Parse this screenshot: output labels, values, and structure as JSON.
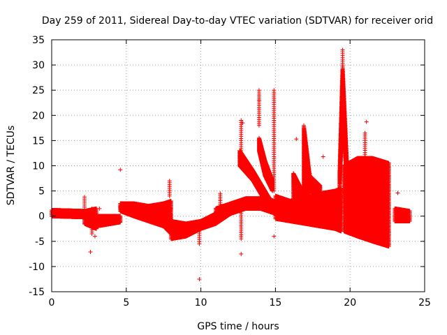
{
  "chart_data": {
    "type": "scatter",
    "title": "Day 259 of 2011, Sidereal Day-to-day VTEC variation (SDTVAR) for receiver orid",
    "xlabel": "GPS time / hours",
    "ylabel": "SDTVAR / TECUs",
    "xlim": [
      0,
      25
    ],
    "ylim": [
      -15,
      35
    ],
    "xticks": [
      0,
      5,
      10,
      15,
      20,
      25
    ],
    "yticks": [
      -15,
      -10,
      -5,
      0,
      5,
      10,
      15,
      20,
      25,
      30,
      35
    ],
    "grid": true,
    "marker": "+",
    "color": "#ff0000",
    "bands": [
      {
        "x": [
          0.0,
          2.2
        ],
        "lo": [
          0.0,
          -0.2
        ],
        "hi": [
          1.2,
          1.0
        ]
      },
      {
        "x": [
          2.2,
          3.0
        ],
        "lo": [
          -1.5,
          -2.5
        ],
        "hi": [
          1.0,
          1.5
        ]
      },
      {
        "x": [
          3.0,
          4.6
        ],
        "lo": [
          -2.0,
          -1.2
        ],
        "hi": [
          0.0,
          0.0
        ]
      },
      {
        "x": [
          4.6,
          5.5,
          6.5,
          7.5,
          8.0
        ],
        "lo": [
          1.0,
          0.0,
          -1.0,
          -2.0,
          -3.5
        ],
        "hi": [
          2.5,
          2.5,
          2.0,
          2.5,
          3.0
        ]
      },
      {
        "x": [
          8.0,
          9.0,
          10.0,
          11.0
        ],
        "lo": [
          -4.5,
          -4.0,
          -2.5,
          -1.5
        ],
        "hi": [
          -1.0,
          -1.5,
          -1.0,
          0.5
        ]
      },
      {
        "x": [
          11.0,
          12.0,
          13.0,
          14.0,
          15.0
        ],
        "lo": [
          -1.5,
          0.5,
          1.5,
          1.5,
          0.5
        ],
        "hi": [
          1.5,
          2.5,
          3.5,
          3.5,
          3.0
        ]
      },
      {
        "x": [
          12.6,
          13.5,
          14.5,
          15.0
        ],
        "lo": [
          10.0,
          7.0,
          2.0,
          1.0
        ],
        "hi": [
          13.0,
          9.0,
          4.0,
          2.0
        ]
      },
      {
        "x": [
          13.9,
          14.3,
          14.8
        ],
        "lo": [
          13.0,
          8.0,
          5.0
        ],
        "hi": [
          15.5,
          11.0,
          7.0
        ]
      },
      {
        "x": [
          15.0,
          16.0,
          17.0,
          18.0,
          19.0,
          19.4
        ],
        "lo": [
          -0.5,
          -1.0,
          -1.5,
          -2.0,
          -2.5,
          -3.0
        ],
        "hi": [
          4.0,
          3.0,
          3.5,
          4.5,
          5.0,
          5.5
        ]
      },
      {
        "x": [
          16.2,
          16.8
        ],
        "lo": [
          3.0,
          2.0
        ],
        "hi": [
          8.5,
          5.0
        ]
      },
      {
        "x": [
          16.9,
          17.3,
          18.0
        ],
        "lo": [
          3.0,
          5.0,
          4.0
        ],
        "hi": [
          18.0,
          8.0,
          6.0
        ]
      },
      {
        "x": [
          19.3,
          19.5,
          19.8
        ],
        "lo": [
          5.0,
          20.0,
          6.0
        ],
        "hi": [
          9.0,
          30.0,
          10.0
        ]
      },
      {
        "x": [
          19.6,
          20.5,
          21.5,
          22.6
        ],
        "lo": [
          -3.0,
          -4.0,
          -5.0,
          -6.0
        ],
        "hi": [
          10.0,
          11.5,
          11.5,
          10.5
        ]
      },
      {
        "x": [
          23.0,
          24.0
        ],
        "lo": [
          -1.0,
          -1.0
        ],
        "hi": [
          1.5,
          1.0
        ]
      }
    ],
    "spikes": [
      {
        "x": 2.2,
        "lo": 1.0,
        "hi": 3.8
      },
      {
        "x": 2.7,
        "lo": -3.5,
        "hi": 1.5
      },
      {
        "x": 7.9,
        "lo": 4.0,
        "hi": 7.0
      },
      {
        "x": 9.9,
        "lo": -5.5,
        "hi": -1.5
      },
      {
        "x": 11.3,
        "lo": 2.0,
        "hi": 4.5
      },
      {
        "x": 12.7,
        "lo": -4.5,
        "hi": 1.0
      },
      {
        "x": 12.7,
        "lo": 13.0,
        "hi": 19.0
      },
      {
        "x": 13.9,
        "lo": 18.0,
        "hi": 25.0
      },
      {
        "x": 14.9,
        "lo": 5.0,
        "hi": 25.0
      },
      {
        "x": 17.3,
        "lo": 4.0,
        "hi": 8.5
      },
      {
        "x": 19.5,
        "lo": 30.0,
        "hi": 33.0
      },
      {
        "x": 21.0,
        "lo": 11.5,
        "hi": 16.5
      }
    ],
    "outliers": [
      {
        "x": 2.6,
        "y": -7.1
      },
      {
        "x": 4.6,
        "y": 9.2
      },
      {
        "x": 9.9,
        "y": -12.5
      },
      {
        "x": 12.7,
        "y": -7.5
      },
      {
        "x": 12.8,
        "y": 18.5
      },
      {
        "x": 13.9,
        "y": 23.0
      },
      {
        "x": 14.9,
        "y": -4.0
      },
      {
        "x": 16.4,
        "y": 15.3
      },
      {
        "x": 18.2,
        "y": 11.8
      },
      {
        "x": 21.1,
        "y": 18.7
      },
      {
        "x": 23.2,
        "y": 4.6
      },
      {
        "x": 2.9,
        "y": -4.0
      },
      {
        "x": 3.2,
        "y": 1.5
      }
    ]
  }
}
